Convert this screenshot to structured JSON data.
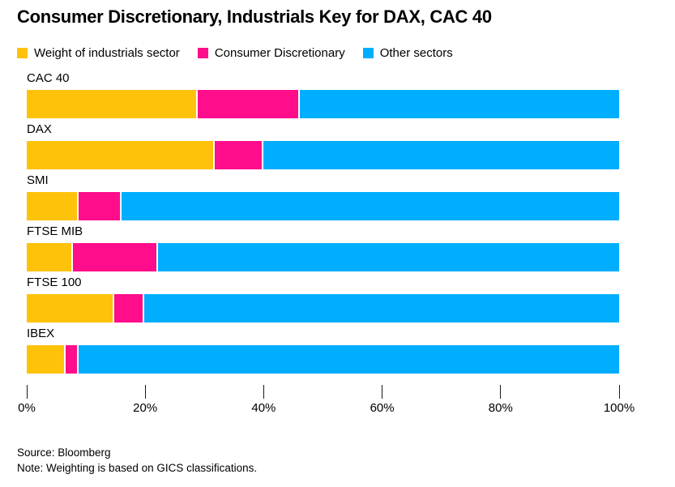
{
  "header": {
    "title": "Consumer Discretionary, Industrials Key for DAX, CAC 40"
  },
  "legend": [
    {
      "label": "Weight of industrials sector",
      "color": "#ffc20a"
    },
    {
      "label": "Consumer Discretionary",
      "color": "#ff0d8a"
    },
    {
      "label": "Other sectors",
      "color": "#00aeff"
    }
  ],
  "chart_data": {
    "type": "bar",
    "orientation": "horizontal",
    "stacked": true,
    "title": "Consumer Discretionary, Industrials Key for DAX, CAC 40",
    "categories": [
      "CAC 40",
      "DAX",
      "SMI",
      "FTSE MIB",
      "FTSE 100",
      "IBEX"
    ],
    "series": [
      {
        "name": "Weight of industrials sector",
        "color": "#ffc20a",
        "values": [
          28.9,
          31.8,
          8.8,
          7.8,
          14.8,
          6.6
        ]
      },
      {
        "name": "Consumer Discretionary",
        "color": "#ff0d8a",
        "values": [
          17.2,
          8.1,
          7.2,
          14.3,
          5.1,
          2.1
        ]
      },
      {
        "name": "Other sectors",
        "color": "#00aeff",
        "values": [
          53.9,
          60.1,
          84.0,
          77.9,
          80.1,
          91.3
        ]
      }
    ],
    "xlabel": "",
    "ylabel": "",
    "xlim": [
      0,
      100
    ],
    "x_tick_values": [
      0,
      20,
      40,
      60,
      80,
      100
    ],
    "x_tick_labels": [
      "0%",
      "20%",
      "40%",
      "60%",
      "80%",
      "100%"
    ],
    "grid": false,
    "legend_position": "top-left",
    "unit": "percent"
  },
  "footer": {
    "source": "Source: Bloomberg",
    "note": "Note: Weighting is based on GICS classifications."
  }
}
